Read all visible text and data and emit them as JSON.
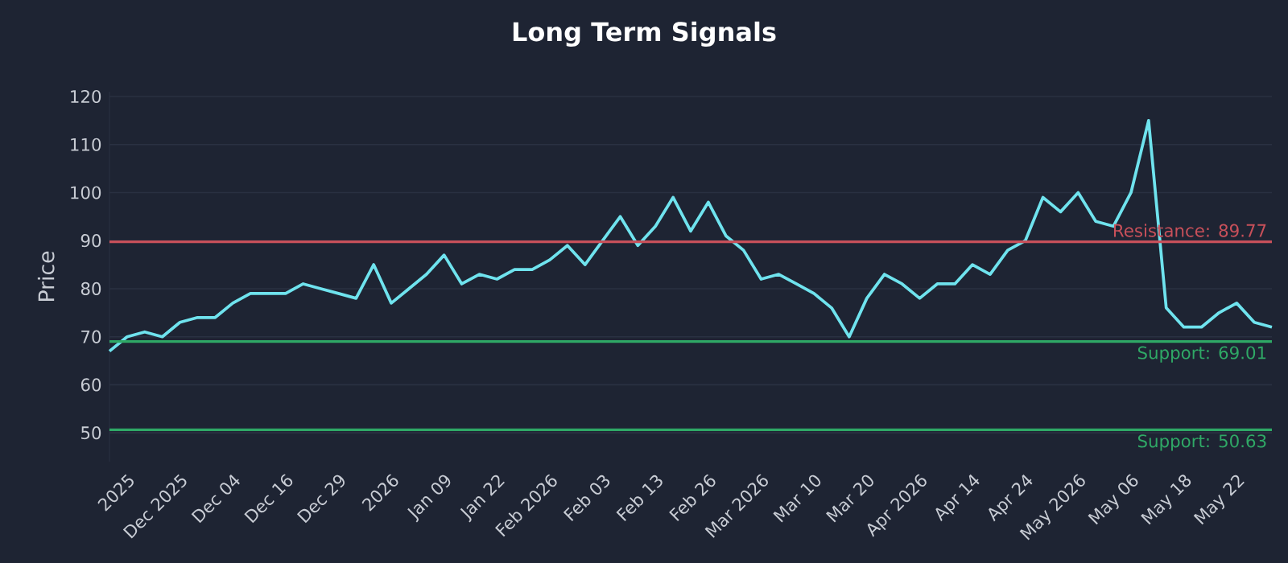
{
  "chart_data": {
    "type": "line",
    "title": "Long Term Signals",
    "ylabel": "Price",
    "categories": [
      null,
      "2025",
      null,
      null,
      "Dec 2025",
      null,
      null,
      "Dec 04",
      null,
      null,
      "Dec 16",
      null,
      null,
      "Dec 29",
      null,
      null,
      "2026",
      null,
      null,
      "Jan 09",
      null,
      null,
      "Jan 22",
      null,
      null,
      "Feb 2026",
      null,
      null,
      "Feb 03",
      null,
      null,
      "Feb 13",
      null,
      null,
      "Feb 26",
      null,
      null,
      "Mar 2026",
      null,
      null,
      "Mar 10",
      null,
      null,
      "Mar 20",
      null,
      null,
      "Apr 2026",
      null,
      null,
      "Apr 14",
      null,
      null,
      "Apr 24",
      null,
      null,
      "May 2026",
      null,
      null,
      "May 06",
      null,
      null,
      "May 18",
      null,
      null,
      "May 22",
      null,
      null
    ],
    "series": [
      {
        "color": "#6fe3ee",
        "values": [
          67,
          70,
          71,
          70,
          73,
          74,
          74,
          77,
          79,
          79,
          79,
          81,
          80,
          79,
          78,
          85,
          77,
          80,
          83,
          87,
          81,
          83,
          82,
          84,
          84,
          86,
          89,
          85,
          90,
          95,
          89,
          93,
          99,
          92,
          98,
          91,
          88,
          82,
          83,
          81,
          79,
          76,
          70,
          78,
          83,
          81,
          78,
          81,
          81,
          85,
          83,
          88,
          90,
          99,
          96,
          100,
          94,
          93,
          100,
          115,
          76,
          72,
          72,
          75,
          77,
          73,
          72
        ]
      }
    ],
    "ylim": [
      44,
      121
    ],
    "yticks": [
      50,
      60,
      70,
      80,
      90,
      100,
      110,
      120
    ],
    "grid": "y",
    "marker": "none",
    "line_style": "solid",
    "ref_lines": [
      {
        "axis": "y",
        "value": 89.77,
        "label": "Resistance: 89.77",
        "color": "#c8505a"
      },
      {
        "axis": "y",
        "value": 69.01,
        "label": "Support: 69.01",
        "color": "#2fa866"
      },
      {
        "axis": "y",
        "value": 50.63,
        "label": "Support: 50.63",
        "color": "#2fa866"
      }
    ]
  }
}
